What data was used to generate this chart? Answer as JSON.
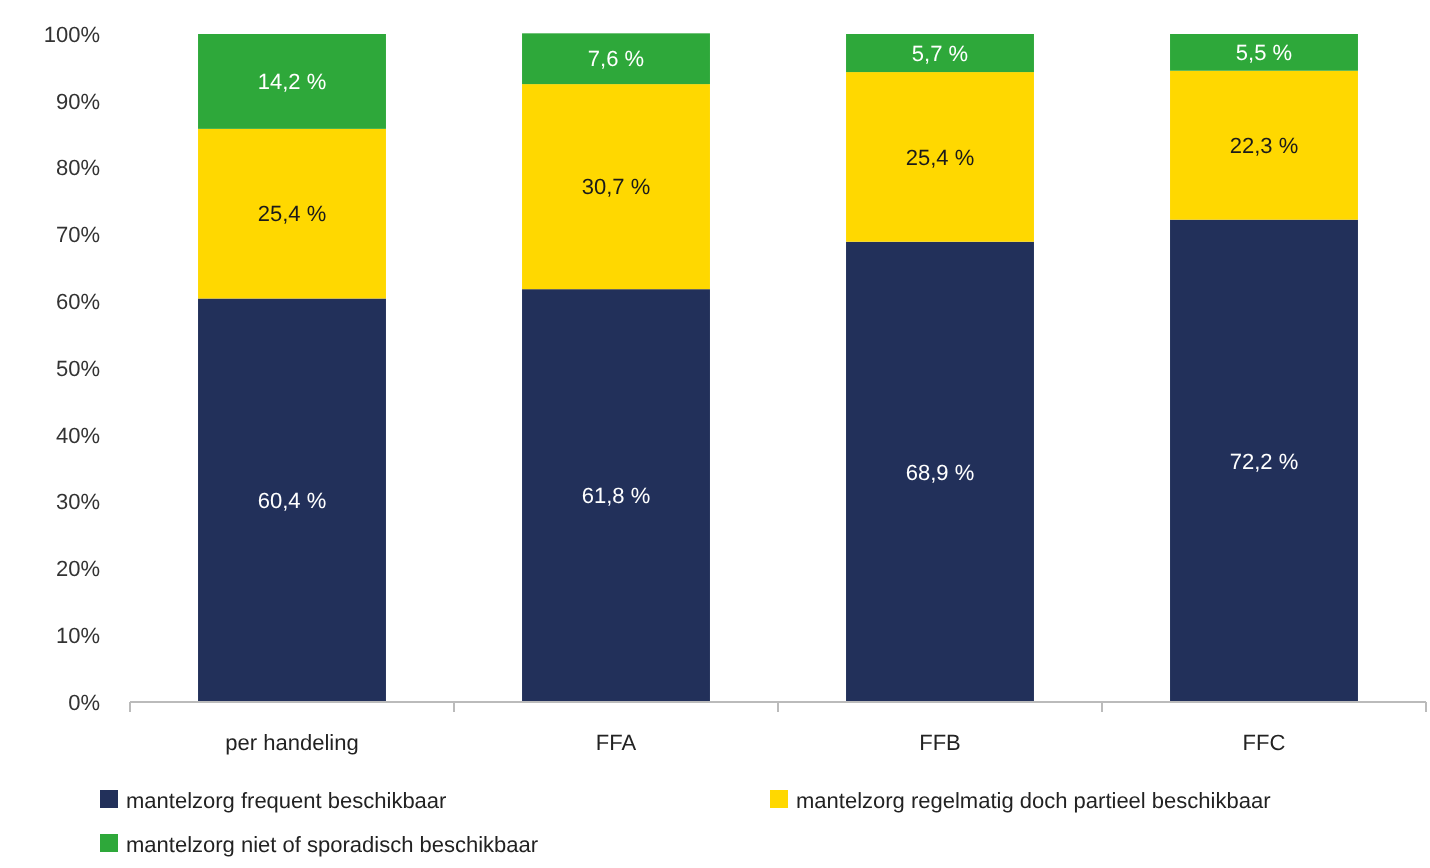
{
  "chart_data": {
    "type": "bar",
    "stacked": true,
    "categories": [
      "per handeling",
      "FFA",
      "FFB",
      "FFC"
    ],
    "series": [
      {
        "name": "mantelzorg frequent beschikbaar",
        "color": "#22305a",
        "values": [
          60.4,
          61.8,
          68.9,
          72.2
        ],
        "value_labels": [
          "60,4 %",
          "61,8 %",
          "68,9 %",
          "72,2 %"
        ]
      },
      {
        "name": "mantelzorg regelmatig doch partieel beschikbaar",
        "color": "#ffd800",
        "values": [
          25.4,
          30.7,
          25.4,
          22.3
        ],
        "value_labels": [
          "25,4 %",
          "30,7 %",
          "25,4 %",
          "22,3 %"
        ]
      },
      {
        "name": "mantelzorg niet of sporadisch beschikbaar",
        "color": "#2ea83a",
        "values": [
          14.2,
          7.6,
          5.7,
          5.5
        ],
        "value_labels": [
          "14,2 %",
          "7,6 %",
          "5,7 %",
          "5,5 %"
        ]
      }
    ],
    "ylim": [
      0,
      100
    ],
    "yticks": [
      {
        "value": 0,
        "label": "0%"
      },
      {
        "value": 10,
        "label": "10%"
      },
      {
        "value": 20,
        "label": "20%"
      },
      {
        "value": 30,
        "label": "30%"
      },
      {
        "value": 40,
        "label": "40%"
      },
      {
        "value": 50,
        "label": "50%"
      },
      {
        "value": 60,
        "label": "60%"
      },
      {
        "value": 70,
        "label": "70%"
      },
      {
        "value": 80,
        "label": "80%"
      },
      {
        "value": 90,
        "label": "90%"
      },
      {
        "value": 100,
        "label": "100%"
      }
    ],
    "grid": false,
    "legend": "bottom"
  }
}
